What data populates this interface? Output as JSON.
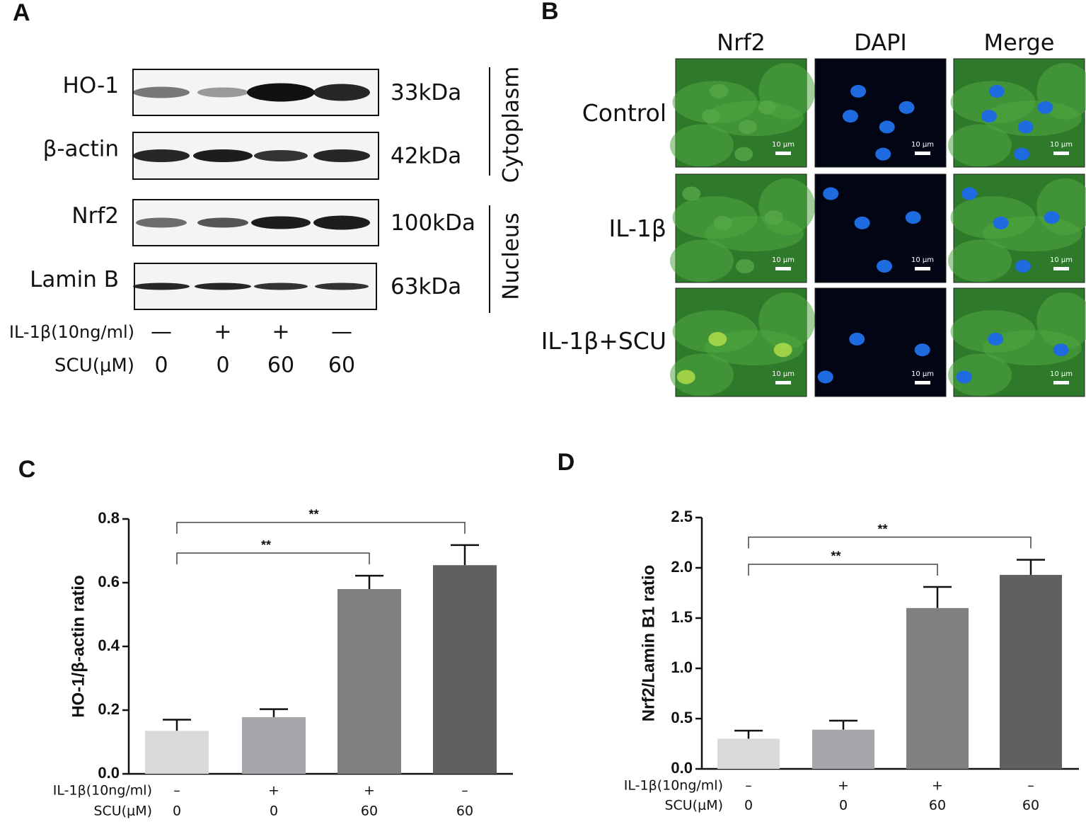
{
  "panel_a": {
    "label": "A",
    "blots": [
      {
        "protein": "HO-1",
        "size": "33kDa"
      },
      {
        "protein": "β-actin",
        "size": "42kDa"
      },
      {
        "protein": "Nrf2",
        "size": "100kDa"
      },
      {
        "protein": "Lamin B",
        "size": "63kDa"
      }
    ],
    "compartments": [
      "Cytoplasm",
      "Nucleus"
    ],
    "treatment_rows": [
      {
        "label": "IL-1β(10ng/ml)",
        "values": [
          "—",
          "+",
          "+",
          "—"
        ]
      },
      {
        "label": "SCU(μM)",
        "values": [
          "0",
          "0",
          "60",
          "60"
        ]
      }
    ]
  },
  "panel_b": {
    "label": "B",
    "columns": [
      "Nrf2",
      "DAPI",
      "Merge"
    ],
    "rows": [
      "Control",
      "IL-1β",
      "IL-1β+SCU"
    ],
    "scale_bar": "10 μm"
  },
  "chart_data": [
    {
      "type": "bar",
      "panel": "C",
      "y_label": "HO-1/β-actin ratio",
      "treatment_rows": [
        {
          "label": "IL-1β(10ng/ml)",
          "values": [
            "–",
            "+",
            "+",
            "–"
          ]
        },
        {
          "label": "SCU(μM)",
          "values": [
            "0",
            "0",
            "60",
            "60"
          ]
        }
      ],
      "values": [
        0.135,
        0.178,
        0.58,
        0.655
      ],
      "errors": [
        0.035,
        0.025,
        0.042,
        0.063
      ],
      "colors": [
        "#d9d9d9",
        "#a6a6ab",
        "#808080",
        "#606060"
      ],
      "ylim": [
        0,
        0.8
      ],
      "yticks": [
        {
          "value": 0,
          "label": "0.0"
        },
        0.2,
        0.4,
        0.6,
        0.8
      ],
      "significance": [
        {
          "from": 0,
          "to": 2,
          "label": "**"
        },
        {
          "from": 0,
          "to": 3,
          "label": "**"
        }
      ]
    },
    {
      "type": "bar",
      "panel": "D",
      "y_label": "Nrf2/Lamin B1 ratio",
      "treatment_rows": [
        {
          "label": "IL-1β(10ng/ml)",
          "values": [
            "–",
            "+",
            "+",
            "–"
          ]
        },
        {
          "label": "SCU(μM)",
          "values": [
            "0",
            "0",
            "60",
            "60"
          ]
        }
      ],
      "values": [
        0.3,
        0.39,
        1.6,
        1.93
      ],
      "errors": [
        0.08,
        0.09,
        0.21,
        0.15
      ],
      "colors": [
        "#d9d9d9",
        "#a6a6ab",
        "#808080",
        "#606060"
      ],
      "ylim": [
        0,
        2.5
      ],
      "yticks": [
        {
          "value": 0,
          "label": "0.0"
        },
        0.5,
        {
          "value": 1,
          "label": "1.0"
        },
        1.5,
        {
          "value": 2,
          "label": "2.0"
        },
        2.5
      ],
      "significance": [
        {
          "from": 0,
          "to": 2,
          "label": "**"
        },
        {
          "from": 0,
          "to": 3,
          "label": "**"
        }
      ]
    }
  ]
}
